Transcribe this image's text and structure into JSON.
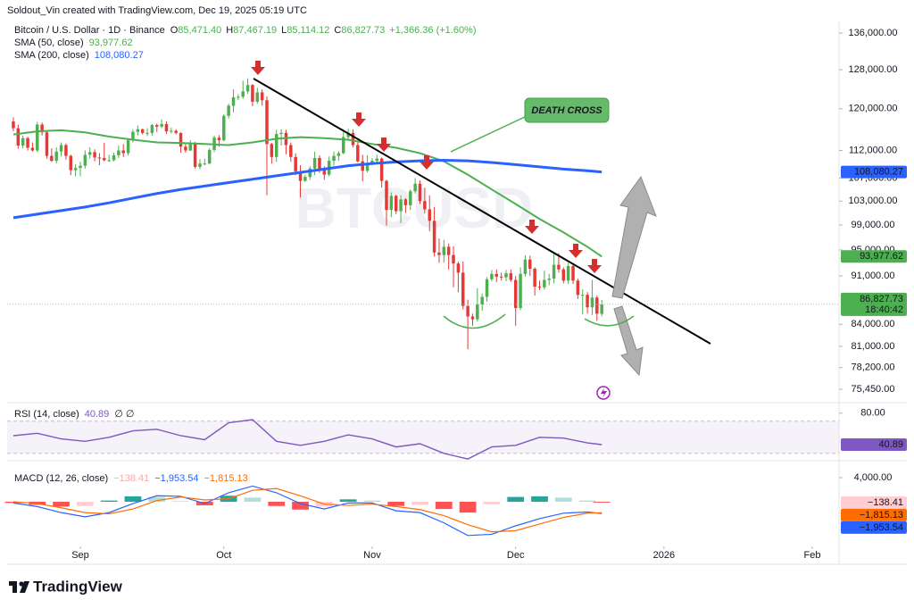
{
  "header": {
    "credit": "Soldout_Vin created with TradingView.com, Dec 19, 2025 05:19 UTC"
  },
  "chart_data": [
    {
      "type": "candlestick",
      "title": "Bitcoin / U.S. Dollar · 1D · Binance",
      "ohlc_legend": [
        {
          "key": "O",
          "value": "85,471.40"
        },
        {
          "key": "H",
          "value": "87,467.19"
        },
        {
          "key": "L",
          "value": "85,114.12"
        },
        {
          "key": "C",
          "value": "86,827.73"
        }
      ],
      "change": "+1,366.36 (+1.60%)",
      "x": [
        -14,
        -13,
        -12,
        -11,
        -10,
        -9,
        -8,
        -7,
        -6,
        -5,
        -4,
        -3,
        -2,
        -1,
        0,
        1,
        2,
        3,
        4,
        5,
        6,
        7,
        8,
        9,
        10,
        11,
        12,
        13,
        14,
        15,
        16,
        17,
        18,
        19,
        20,
        21,
        22,
        23,
        24,
        25,
        26,
        27,
        28,
        29,
        30,
        31,
        32,
        33,
        34,
        35,
        36,
        37,
        38,
        39,
        40,
        41,
        42,
        43,
        44,
        45,
        46,
        47,
        48,
        49,
        50,
        51,
        52,
        53,
        54,
        55,
        56,
        57,
        58,
        59,
        60,
        61,
        62,
        63,
        64,
        65,
        66,
        67,
        68,
        69,
        70,
        71,
        72,
        73,
        74,
        75,
        76,
        77,
        78,
        79,
        80,
        81,
        82,
        83,
        84,
        85,
        86,
        87,
        88,
        89,
        90,
        91,
        92,
        93,
        94,
        95,
        96,
        97,
        98,
        99,
        100,
        101,
        102,
        103,
        104,
        105,
        106,
        107,
        108,
        109
      ],
      "open": [
        117500,
        116200,
        112900,
        114300,
        112500,
        112000,
        116900,
        115400,
        111000,
        110100,
        111800,
        113000,
        111000,
        108400,
        108800,
        109200,
        111200,
        111700,
        110700,
        110600,
        110200,
        110200,
        111100,
        112000,
        111500,
        113900,
        115500,
        116000,
        115300,
        115300,
        116800,
        116500,
        117000,
        115600,
        115700,
        115300,
        112700,
        112000,
        113300,
        109000,
        109600,
        109600,
        112100,
        114400,
        113900,
        118600,
        120600,
        122300,
        122400,
        123500,
        124800,
        121400,
        123300,
        121700,
        113200,
        110800,
        115100,
        115300,
        113000,
        110800,
        108200,
        106500,
        107200,
        108700,
        110600,
        108500,
        107600,
        110100,
        111000,
        111500,
        114500,
        115300,
        113000,
        110000,
        108300,
        109600,
        110100,
        110500,
        106500,
        101500,
        103900,
        101300,
        103300,
        102300,
        104700,
        106000,
        103000,
        101600,
        99700,
        94600,
        94200,
        95500,
        94200,
        92900,
        91500,
        86600,
        85100,
        84700,
        86800,
        87900,
        90500,
        91300,
        90900,
        90800,
        91400,
        90400,
        86300,
        91300,
        93500,
        92100,
        89400,
        89300,
        90400,
        90600,
        92700,
        92000,
        90300,
        92500,
        90300,
        88200,
        88200,
        86400,
        87800,
        85471.4
      ],
      "high": [
        118300,
        116900,
        114800,
        114600,
        113500,
        117400,
        117300,
        115600,
        112400,
        112600,
        113500,
        113300,
        111200,
        109500,
        109900,
        112000,
        112600,
        112200,
        111500,
        113400,
        111200,
        111600,
        112900,
        113200,
        114300,
        116000,
        116700,
        116100,
        116200,
        117000,
        117100,
        117900,
        117500,
        116300,
        116000,
        115400,
        113400,
        113900,
        113600,
        110400,
        110500,
        112400,
        114800,
        114900,
        118900,
        121000,
        123900,
        122900,
        125700,
        126200,
        125000,
        124200,
        123900,
        122500,
        113400,
        115900,
        116000,
        115900,
        113500,
        111500,
        109300,
        107600,
        109100,
        111800,
        111100,
        109100,
        110900,
        111800,
        111900,
        116000,
        116100,
        116000,
        113500,
        111200,
        111100,
        110600,
        111200,
        110700,
        106700,
        104500,
        104100,
        104000,
        103500,
        105000,
        107000,
        106600,
        105300,
        104000,
        102000,
        96800,
        96600,
        96000,
        95600,
        93200,
        93200,
        87500,
        85500,
        89200,
        88400,
        90800,
        91900,
        92000,
        91500,
        91900,
        92000,
        91000,
        92300,
        94200,
        94100,
        92300,
        90300,
        91800,
        91300,
        94600,
        94500,
        92300,
        93000,
        92800,
        90600,
        89000,
        88600,
        90400,
        88100,
        87467.19
      ],
      "low": [
        115600,
        112300,
        112400,
        112000,
        111800,
        111700,
        114800,
        110500,
        109900,
        109600,
        110900,
        110300,
        107500,
        107300,
        107300,
        108700,
        110500,
        110000,
        109300,
        110000,
        109900,
        110000,
        110600,
        110800,
        111100,
        113500,
        114800,
        115000,
        114700,
        114800,
        115500,
        116200,
        115100,
        115200,
        115000,
        111600,
        111600,
        111900,
        108700,
        108600,
        109300,
        109500,
        111700,
        112700,
        113700,
        118100,
        119300,
        121700,
        122000,
        123000,
        120500,
        121000,
        120600,
        104000,
        109600,
        109900,
        112900,
        111300,
        109900,
        107500,
        103600,
        106300,
        106700,
        107500,
        107900,
        106700,
        107300,
        109200,
        110100,
        111300,
        113800,
        112600,
        109800,
        106400,
        108000,
        109300,
        109800,
        105300,
        98900,
        100300,
        100800,
        99300,
        101000,
        101500,
        104300,
        102500,
        100900,
        98000,
        94000,
        93000,
        93000,
        92000,
        89300,
        88600,
        86100,
        80600,
        83800,
        84400,
        85900,
        87200,
        90200,
        90100,
        90300,
        90200,
        90100,
        83800,
        86000,
        90900,
        91000,
        88100,
        88900,
        89000,
        89600,
        89900,
        91500,
        89900,
        89800,
        89800,
        87600,
        85400,
        85500,
        85300,
        84500,
        85114.12
      ],
      "close": [
        116200,
        112900,
        114300,
        112500,
        112000,
        116900,
        115400,
        111000,
        110100,
        111800,
        113000,
        111000,
        108400,
        108800,
        109200,
        111200,
        111700,
        110700,
        110600,
        110200,
        110200,
        111100,
        112000,
        111500,
        113900,
        115500,
        116000,
        115300,
        115300,
        116800,
        116500,
        117000,
        115600,
        115700,
        115300,
        112700,
        112000,
        113300,
        109000,
        109600,
        109600,
        112100,
        114400,
        113900,
        118600,
        120600,
        122300,
        122400,
        123500,
        124800,
        121400,
        123300,
        121700,
        113200,
        110800,
        115100,
        115300,
        113000,
        110800,
        108200,
        106500,
        107200,
        108700,
        110600,
        108500,
        107600,
        110100,
        111000,
        111500,
        114500,
        115300,
        113000,
        110000,
        108300,
        109600,
        110100,
        110500,
        106500,
        101500,
        103900,
        101300,
        103300,
        102300,
        104700,
        106000,
        103000,
        101600,
        99700,
        94600,
        94200,
        95500,
        94200,
        92900,
        91500,
        86600,
        85100,
        84700,
        86800,
        87900,
        90500,
        91300,
        90900,
        90800,
        91400,
        90400,
        86300,
        91300,
        93500,
        92100,
        89400,
        89300,
        90400,
        90600,
        92700,
        92000,
        90300,
        92500,
        90300,
        88200,
        88200,
        86400,
        87800,
        85500,
        86827.73
      ],
      "up_color": "#4caf50",
      "down_color": "#e53935",
      "last_price_label": "86,827.73",
      "countdown": "18:40:42",
      "series": [
        {
          "name": "SMA (50, close)",
          "color": "#4caf50",
          "x": [
            -14,
            -9,
            -4,
            1,
            6,
            11,
            16,
            21,
            26,
            31,
            36,
            41,
            46,
            51,
            56,
            61,
            66,
            71,
            76,
            81,
            86,
            91,
            96,
            101,
            106,
            109
          ],
          "values": [
            115000,
            115600,
            115800,
            115400,
            114600,
            114000,
            113500,
            113400,
            113200,
            113000,
            113500,
            114200,
            114500,
            114300,
            114000,
            113200,
            112500,
            111500,
            110000,
            107600,
            105000,
            102500,
            100000,
            97800,
            95500,
            93977.62
          ],
          "last_label": "93,977.62"
        },
        {
          "name": "SMA (200, close)",
          "color": "#2962ff",
          "x": [
            -14,
            -9,
            -4,
            1,
            6,
            11,
            16,
            21,
            26,
            31,
            36,
            41,
            46,
            51,
            56,
            61,
            66,
            71,
            76,
            81,
            86,
            91,
            96,
            101,
            106,
            109
          ],
          "values": [
            100200,
            100800,
            101400,
            102000,
            102700,
            103500,
            104300,
            105000,
            105600,
            106200,
            106800,
            107400,
            108000,
            108600,
            109200,
            109600,
            109900,
            110100,
            110200,
            110100,
            109800,
            109400,
            109000,
            108600,
            108300,
            108080.27
          ],
          "last_label": "108,080.27"
        }
      ],
      "xlim": [
        -15.3,
        158.6
      ],
      "ylim": [
        73900,
        142600
      ],
      "log": true,
      "yticks": [
        {
          "value": 136000,
          "label": "136,000.00"
        },
        {
          "value": 128000,
          "label": "128,000.00"
        },
        {
          "value": 120000,
          "label": "120,000.00"
        },
        {
          "value": 112000,
          "label": "112,000.00"
        },
        {
          "value": 107000,
          "label": "107,000.00"
        },
        {
          "value": 103000,
          "label": "103,000.00"
        },
        {
          "value": 99000,
          "label": "99,000.00"
        },
        {
          "value": 95000,
          "label": "95,000.00"
        },
        {
          "value": 91000,
          "label": "91,000.00"
        },
        {
          "value": 84000,
          "label": "84,000.00"
        },
        {
          "value": 81000,
          "label": "81,000.00"
        },
        {
          "value": 78200,
          "label": "78,200.00"
        },
        {
          "value": 75450,
          "label": "75,450.00"
        }
      ],
      "watermark": "BTCUSD",
      "annotation": "DEATH CROSS"
    },
    {
      "type": "line",
      "title": "RSI (14, close)",
      "value_label": "40.89",
      "flags": "∅ ∅",
      "color": "#7e57c2",
      "x": [
        -14,
        -9,
        -4,
        1,
        6,
        11,
        16,
        21,
        26,
        31,
        36,
        41,
        46,
        51,
        56,
        61,
        66,
        71,
        76,
        81,
        86,
        91,
        96,
        101,
        106,
        109
      ],
      "values": [
        52,
        55,
        48,
        45,
        50,
        58,
        60,
        52,
        47,
        68,
        72,
        45,
        40,
        45,
        53,
        48,
        38,
        42,
        30,
        23,
        38,
        40,
        50,
        49,
        43,
        40.89
      ],
      "band": [
        30,
        70
      ],
      "xlim": [
        -15.3,
        158.6
      ],
      "ylim": [
        22,
        92
      ],
      "yticks": [
        {
          "value": 80,
          "label": "80.00"
        }
      ]
    },
    {
      "type": "macd",
      "title": "MACD (12, 26, close)",
      "x": [
        -14,
        -9,
        -4,
        1,
        6,
        11,
        16,
        21,
        26,
        31,
        36,
        41,
        46,
        51,
        56,
        61,
        66,
        71,
        76,
        81,
        86,
        91,
        96,
        101,
        106,
        109
      ],
      "histogram": {
        "values": [
          -200,
          -500,
          -800,
          -700,
          200,
          900,
          800,
          100,
          -600,
          1000,
          700,
          -700,
          -1300,
          -800,
          400,
          200,
          -700,
          -500,
          -1200,
          -1800,
          -400,
          800,
          900,
          700,
          200,
          -138.41
        ],
        "label": "−138.41",
        "colors": [
          "#26a69a",
          "#b2dfdb",
          "#ff5252",
          "#ffcdd2"
        ]
      },
      "macd": {
        "values": [
          -200,
          -800,
          -1800,
          -2500,
          -1800,
          -300,
          1000,
          900,
          -300,
          1500,
          2600,
          1500,
          -300,
          -1200,
          -200,
          -200,
          -1500,
          -1800,
          -3500,
          -5600,
          -5400,
          -4000,
          -2800,
          -1900,
          -1700,
          -1953.54
        ],
        "color": "#2962ff",
        "label": "−1,953.54"
      },
      "signal": {
        "values": [
          0,
          -300,
          -1000,
          -1800,
          -2000,
          -1200,
          200,
          800,
          300,
          500,
          1900,
          2200,
          1000,
          -400,
          -600,
          -400,
          -800,
          -1300,
          -2300,
          -3800,
          -5000,
          -4800,
          -3700,
          -2600,
          -1900,
          -1815.13
        ],
        "color": "#ff6d00",
        "label": "−1,815.13"
      },
      "xlim": [
        -15.3,
        158.6
      ],
      "ylim": [
        -7410,
        6670
      ],
      "yticks": [
        {
          "value": 4000,
          "label": "4,000.00"
        }
      ],
      "xticks": [
        {
          "value": 0,
          "label": "Sep"
        },
        {
          "value": 30,
          "label": "Oct"
        },
        {
          "value": 61,
          "label": "Nov"
        },
        {
          "value": 91,
          "label": "Dec"
        },
        {
          "value": 122,
          "label": "2026"
        },
        {
          "value": 153,
          "label": "Feb"
        }
      ]
    }
  ],
  "footer": {
    "logo": "TradingView"
  }
}
